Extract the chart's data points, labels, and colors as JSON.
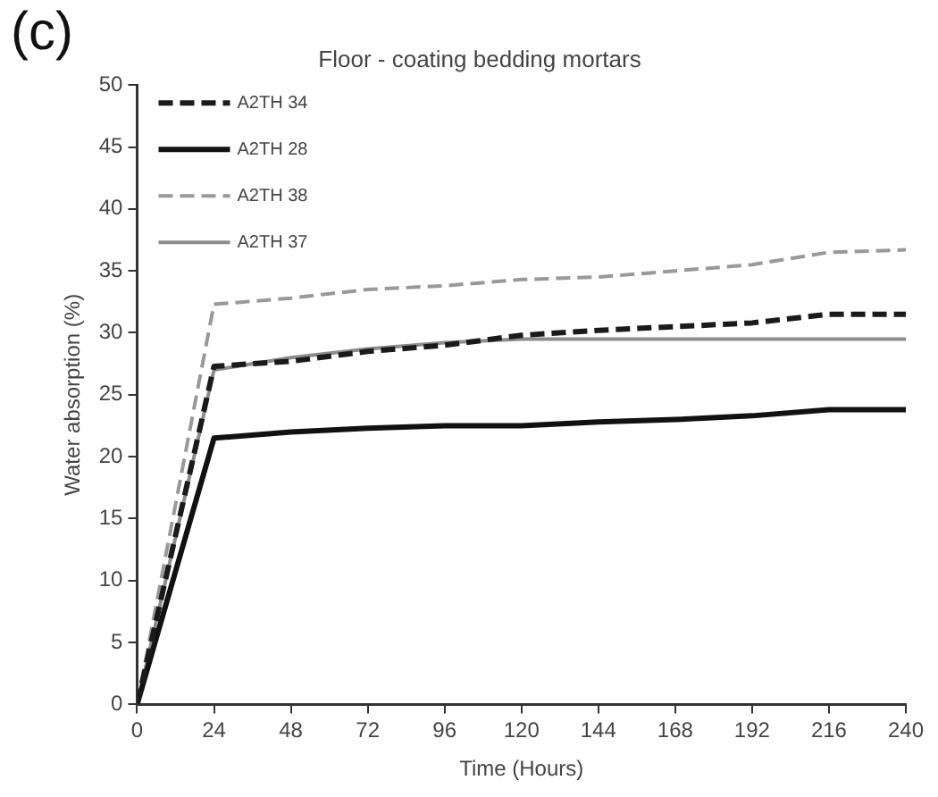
{
  "chart_data": {
    "type": "line",
    "title": "Floor - coating bedding mortars",
    "xlabel": "Time (Hours)",
    "ylabel": "Water absorption (%)",
    "annotations": [
      "(c)"
    ],
    "x": [
      0,
      24,
      48,
      72,
      96,
      120,
      144,
      168,
      192,
      216,
      240
    ],
    "series": [
      {
        "name": "A2TH 34",
        "color": "#1a1a1a",
        "line_style": "dashed",
        "values": [
          0,
          27.3,
          27.7,
          28.5,
          29,
          29.8,
          30.2,
          30.5,
          30.8,
          31.5,
          31.5
        ]
      },
      {
        "name": "A2TH 28",
        "color": "#111111",
        "line_style": "solid",
        "values": [
          0,
          21.5,
          22,
          22.3,
          22.5,
          22.5,
          22.8,
          23,
          23.3,
          23.8,
          23.8
        ]
      },
      {
        "name": "A2TH 38",
        "color": "#999999",
        "line_style": "dashed",
        "values": [
          0,
          32.3,
          32.8,
          33.5,
          33.8,
          34.3,
          34.5,
          35,
          35.5,
          36.5,
          36.7
        ]
      },
      {
        "name": "A2TH 37",
        "color": "#8c8c8c",
        "line_style": "solid",
        "values": [
          0,
          27,
          28,
          28.7,
          29.2,
          29.5,
          29.5,
          29.5,
          29.5,
          29.5,
          29.5
        ]
      }
    ],
    "xlim": [
      0,
      240
    ],
    "xticks": [
      0,
      24,
      48,
      72,
      96,
      120,
      144,
      168,
      192,
      216,
      240
    ],
    "ylim": [
      0,
      50
    ],
    "yticks": [
      0,
      5,
      10,
      15,
      20,
      25,
      30,
      35,
      40,
      45,
      50
    ],
    "grid": false,
    "legend": "top left",
    "marker": "none"
  }
}
